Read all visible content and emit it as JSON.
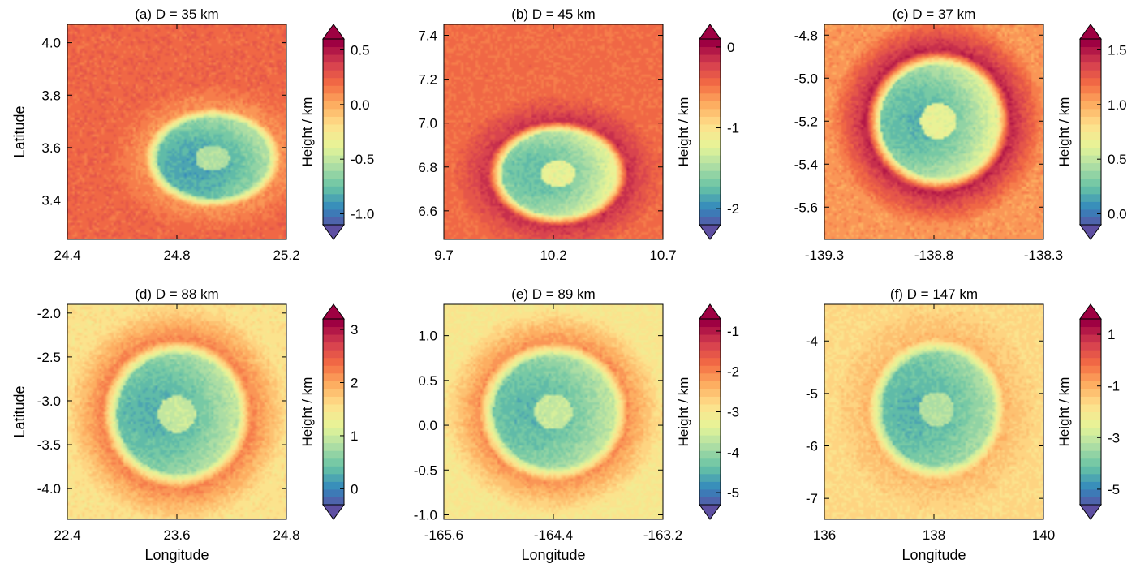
{
  "colorbar_label": "Height / km",
  "chart_data": [
    {
      "type": "heatmap",
      "title": "(a) D = 35 km",
      "xlabel": "",
      "ylabel": "Latitude",
      "xlim": [
        24.4,
        25.2
      ],
      "ylim": [
        3.25,
        4.07
      ],
      "xticks": [
        "24.4",
        "24.8",
        "25.2"
      ],
      "yticks": [
        "3.4",
        "3.6",
        "3.8",
        "4.0"
      ],
      "colorbar": {
        "label": "Height / km",
        "range": [
          -1.1,
          0.6
        ],
        "ticks": [
          "-1.0",
          "-0.5",
          "0.0",
          "0.5"
        ]
      },
      "crater": {
        "cx": 24.93,
        "cy": 3.56,
        "rx": 0.25,
        "ry": 0.19,
        "rotate_deg": -30,
        "floor_height_km": -1.0,
        "rim_height_km": 0.1,
        "surroundings_km": 0.25
      }
    },
    {
      "type": "heatmap",
      "title": "(b) D = 45 km",
      "xlabel": "",
      "ylabel": "",
      "xlim": [
        9.7,
        10.7
      ],
      "ylim": [
        6.47,
        7.45
      ],
      "xticks": [
        "9.7",
        "10.2",
        "10.7"
      ],
      "yticks": [
        "6.6",
        "6.8",
        "7.0",
        "7.2",
        "7.4"
      ],
      "colorbar": {
        "label": "Height / km",
        "range": [
          -2.2,
          0.1
        ],
        "ticks": [
          "-2",
          "-1",
          "0"
        ]
      },
      "crater": {
        "cx": 10.22,
        "cy": 6.77,
        "rx": 0.32,
        "ry": 0.24,
        "rotate_deg": 0,
        "floor_height_km": -2.0,
        "rim_height_km": -0.1,
        "surroundings_km": -0.4
      }
    },
    {
      "type": "heatmap",
      "title": "(c) D = 37 km",
      "xlabel": "",
      "ylabel": "",
      "xlim": [
        -139.3,
        -138.3
      ],
      "ylim": [
        -5.75,
        -4.75
      ],
      "xticks": [
        "-139.3",
        "-138.8",
        "-138.3"
      ],
      "yticks": [
        "-5.6",
        "-5.4",
        "-5.2",
        "-5.0",
        "-4.8"
      ],
      "colorbar": {
        "label": "Height / km",
        "range": [
          -0.1,
          1.6
        ],
        "ticks": [
          "0.0",
          "0.5",
          "1.0",
          "1.5"
        ]
      },
      "crater": {
        "cx": -138.78,
        "cy": -5.2,
        "rx": 0.33,
        "ry": 0.33,
        "rotate_deg": 0,
        "floor_height_km": 0.0,
        "rim_height_km": 1.5,
        "surroundings_km": 1.1
      }
    },
    {
      "type": "heatmap",
      "title": "(d) D = 88 km",
      "xlabel": "Longitude",
      "ylabel": "Latitude",
      "xlim": [
        22.4,
        24.8
      ],
      "ylim": [
        -4.35,
        -1.9
      ],
      "xticks": [
        "22.4",
        "23.6",
        "24.8"
      ],
      "yticks": [
        "-4.0",
        "-3.5",
        "-3.0",
        "-2.5",
        "-2.0"
      ],
      "colorbar": {
        "label": "Height / km",
        "range": [
          -0.3,
          3.2
        ],
        "ticks": [
          "0",
          "1",
          "2",
          "3"
        ]
      },
      "crater": {
        "cx": 23.6,
        "cy": -3.15,
        "rx": 0.82,
        "ry": 0.85,
        "rotate_deg": 0,
        "floor_height_km": 0.0,
        "rim_height_km": 2.3,
        "surroundings_km": 1.6
      }
    },
    {
      "type": "heatmap",
      "title": "(e) D = 89 km",
      "xlabel": "Longitude",
      "ylabel": "",
      "xlim": [
        -165.6,
        -163.2
      ],
      "ylim": [
        -1.05,
        1.35
      ],
      "xticks": [
        "-165.6",
        "-164.4",
        "-163.2"
      ],
      "yticks": [
        "-1.0",
        "-0.5",
        "0.0",
        "0.5",
        "1.0"
      ],
      "colorbar": {
        "label": "Height / km",
        "range": [
          -5.3,
          -0.7
        ],
        "ticks": [
          "-5",
          "-4",
          "-3",
          "-2",
          "-1"
        ]
      },
      "crater": {
        "cx": -164.4,
        "cy": 0.15,
        "rx": 0.82,
        "ry": 0.78,
        "rotate_deg": 0,
        "floor_height_km": -4.8,
        "rim_height_km": -2.0,
        "surroundings_km": -2.9
      }
    },
    {
      "type": "heatmap",
      "title": "(f) D = 147 km",
      "xlabel": "Longitude",
      "ylabel": "",
      "xlim": [
        136,
        140
      ],
      "ylim": [
        -7.4,
        -3.3
      ],
      "xticks": [
        "136",
        "138",
        "140"
      ],
      "yticks": [
        "-7",
        "-6",
        "-5",
        "-4"
      ],
      "colorbar": {
        "label": "Height / km",
        "range": [
          -5.6,
          1.6
        ],
        "ticks": [
          "-5",
          "-3",
          "-1",
          "1"
        ]
      },
      "crater": {
        "cx": 138.05,
        "cy": -5.3,
        "rx": 1.25,
        "ry": 1.35,
        "rotate_deg": 0,
        "floor_height_km": -4.8,
        "rim_height_km": -1.0,
        "surroundings_km": -1.5
      }
    }
  ]
}
